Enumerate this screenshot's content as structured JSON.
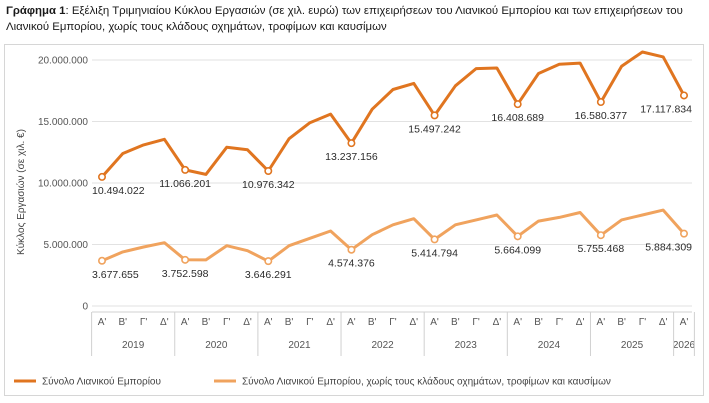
{
  "caption": {
    "prefix": "Γράφημα 1",
    "text": ": Εξέλιξη Τριμηνιαίου Κύκλου Εργασιών (σε χιλ. ευρώ) των επιχειρήσεων του Λιανικού Εμπορίου και των επιχειρήσεων του Λιανικού Εμπορίου, χωρίς τους κλάδους οχημάτων, τροφίμων και καυσίμων"
  },
  "chart_data": {
    "type": "line",
    "ylabel": "Κύκλος Εργασιών (σε χιλ. €)",
    "ylim": [
      0,
      20000000
    ],
    "yticks": [
      "0",
      "5.000.000",
      "10.000.000",
      "15.000.000",
      "20.000.000"
    ],
    "grid": true,
    "legend_position": "bottom",
    "quarters": [
      "Α'",
      "Β'",
      "Γ'",
      "Δ'"
    ],
    "years": [
      "2019",
      "2020",
      "2021",
      "2022",
      "2023",
      "2024",
      "2025",
      "2026"
    ],
    "categories": [
      "Α' 2019",
      "Β' 2019",
      "Γ' 2019",
      "Δ' 2019",
      "Α' 2020",
      "Β' 2020",
      "Γ' 2020",
      "Δ' 2020",
      "Α' 2021",
      "Β' 2021",
      "Γ' 2021",
      "Δ' 2021",
      "Α' 2022",
      "Β' 2022",
      "Γ' 2022",
      "Δ' 2022",
      "Α' 2023",
      "Β' 2023",
      "Γ' 2023",
      "Δ' 2023",
      "Α' 2024",
      "Β' 2024",
      "Γ' 2024",
      "Δ' 2024",
      "Α' 2025",
      "Β' 2025",
      "Γ' 2025",
      "Δ' 2025",
      "Α' 2026"
    ],
    "series": [
      {
        "name": "Σύνολο Λιανικού Εμπορίου",
        "color": "#E07520",
        "values": [
          10494022,
          12400000,
          13100000,
          13550000,
          11066201,
          10700000,
          12900000,
          12700000,
          10976342,
          13600000,
          14900000,
          15600000,
          13237156,
          16000000,
          17600000,
          18100000,
          15497242,
          17900000,
          19300000,
          19350000,
          16408689,
          18900000,
          19650000,
          19750000,
          16580377,
          19500000,
          20650000,
          20250000,
          17117834
        ],
        "labels": {
          "0": "10.494.022",
          "4": "11.066.201",
          "8": "10.976.342",
          "12": "13.237.156",
          "16": "15.497.242",
          "20": "16.408.689",
          "24": "16.580.377",
          "28": "17.117.834"
        }
      },
      {
        "name": "Σύνολο Λιανικού Εμπορίου, χωρίς τους κλάδους οχημάτων, τροφίμων και καυσίμων",
        "color": "#F0A35E",
        "values": [
          3677655,
          4400000,
          4800000,
          5150000,
          3752598,
          3750000,
          4900000,
          4500000,
          3646291,
          4900000,
          5500000,
          6100000,
          4574376,
          5800000,
          6600000,
          7100000,
          5414794,
          6600000,
          7000000,
          7400000,
          5664099,
          6900000,
          7200000,
          7600000,
          5755468,
          7000000,
          7400000,
          7800000,
          5884309
        ],
        "labels": {
          "0": "3.677.655",
          "4": "3.752.598",
          "8": "3.646.291",
          "12": "4.574.376",
          "16": "5.414.794",
          "20": "5.664.099",
          "24": "5.755.468",
          "28": "5.884.309"
        }
      }
    ]
  }
}
